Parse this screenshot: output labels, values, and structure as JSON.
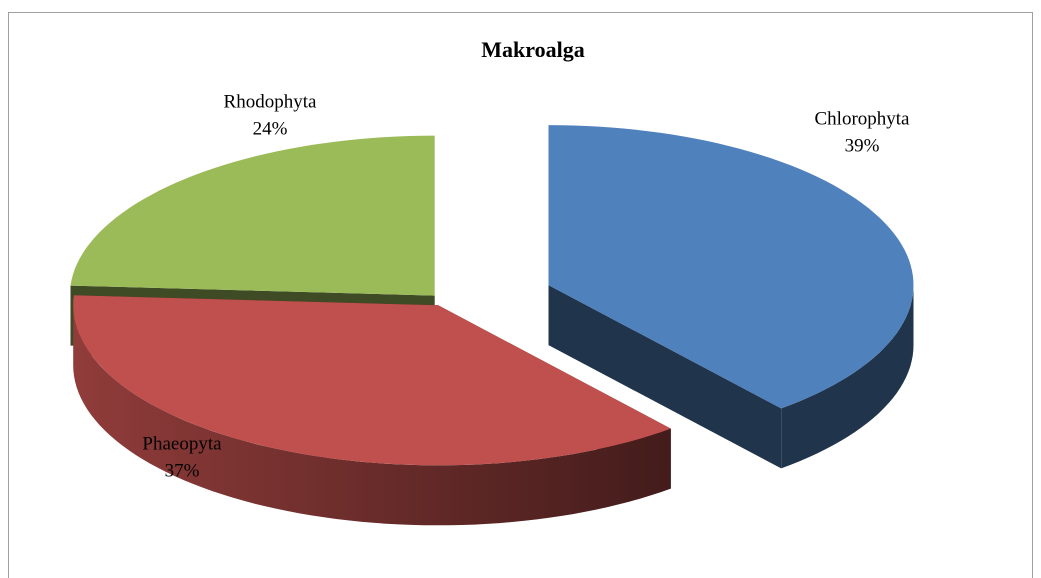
{
  "chart_data": {
    "type": "pie3d",
    "title": "Makroalga",
    "categories": [
      "Chlorophyta",
      "Phaeopyta",
      "Rhodophyta"
    ],
    "values": [
      39,
      37,
      24
    ],
    "value_labels": [
      "39%",
      "37%",
      "24%"
    ],
    "colors": [
      "#4f81bd",
      "#c0504d",
      "#9bbb59"
    ]
  }
}
